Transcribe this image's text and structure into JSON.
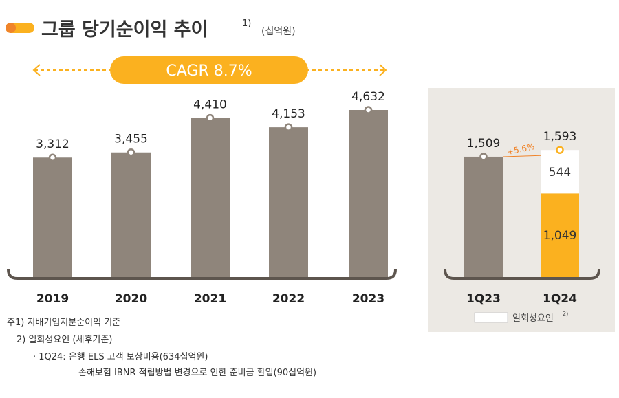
{
  "title": "그룹 당기순이익 추이",
  "title_sup": "1)",
  "unit": "(십억원)",
  "colors": {
    "bar": "#8f857b",
    "accent": "#fbb11f",
    "accent_dark": "#f0842a",
    "growth": "#f0842a",
    "panel": "#ece9e4",
    "axis": "#5d554e"
  },
  "chart_data": [
    {
      "type": "bar",
      "categories": [
        "2019",
        "2020",
        "2021",
        "2022",
        "2023"
      ],
      "values": [
        3312,
        3455,
        4410,
        4153,
        4632
      ],
      "data_labels": [
        "3,312",
        "3,455",
        "4,410",
        "4,153",
        "4,632"
      ],
      "annotation": "CAGR 8.7%"
    },
    {
      "type": "bar",
      "stacked": true,
      "categories": [
        "1Q23",
        "1Q24"
      ],
      "series": [
        {
          "values": [
            1509,
            1049
          ],
          "labels": [
            "",
            "1,049"
          ]
        },
        {
          "name": "일회성요인",
          "values": [
            0,
            544
          ],
          "labels": [
            "",
            "544"
          ]
        }
      ],
      "totals": [
        "1,509",
        "1,593"
      ],
      "annotation": "+5.6%",
      "legend": "일회성요인",
      "legend_sup": "2)"
    }
  ],
  "notes": [
    "주1) 지배기업지분순이익 기준",
    "2) 일회성요인 (세후기준)",
    "· 1Q24: 은행 ELS 고객 보상비용(634십억원)",
    "손해보험 IBNR 적립방법 변경으로 인한 준비금 환입(90십억원)"
  ]
}
